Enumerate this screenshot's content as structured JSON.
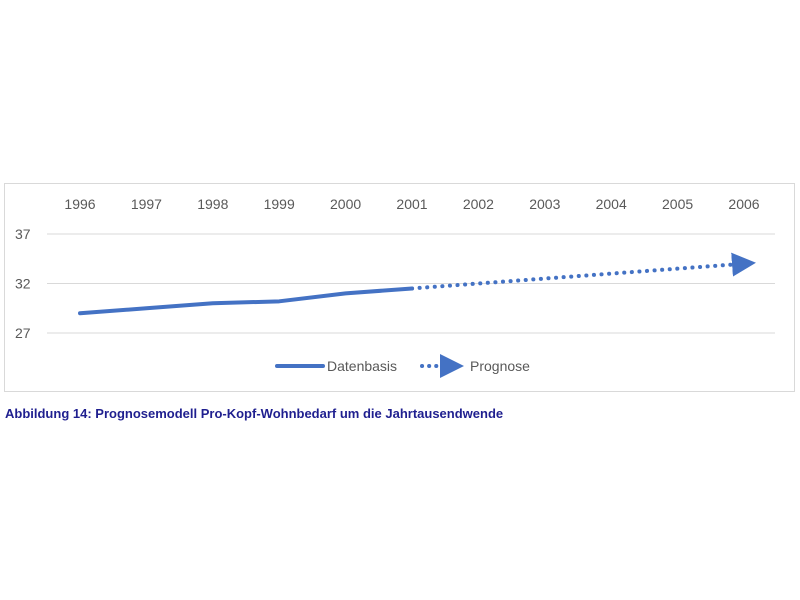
{
  "caption": "Abbildung 14: Prognosemodell Pro-Kopf-Wohnbedarf um die Jahrtausendwende",
  "colors": {
    "series": "#4472c4",
    "grid": "#d9d9d9",
    "text": "#595959",
    "caption": "#1f1f8f"
  },
  "chart_data": {
    "type": "line",
    "title": "",
    "xlabel": "",
    "ylabel": "",
    "categories": [
      "1996",
      "1997",
      "1998",
      "1999",
      "2000",
      "2001",
      "2002",
      "2003",
      "2004",
      "2005",
      "2006"
    ],
    "x_axis_position": "top",
    "yticks": [
      27,
      32,
      37
    ],
    "ylim": [
      27,
      37
    ],
    "grid": true,
    "legend_position": "bottom",
    "series": [
      {
        "name": "Datenbasis",
        "style": "solid",
        "x": [
          "1996",
          "1997",
          "1998",
          "1999",
          "2000",
          "2001"
        ],
        "values": [
          29.0,
          29.5,
          30.0,
          30.2,
          31.0,
          31.5
        ]
      },
      {
        "name": "Prognose",
        "style": "dotted-arrow",
        "x": [
          "2001",
          "2006"
        ],
        "values": [
          31.5,
          34.0
        ]
      }
    ]
  }
}
